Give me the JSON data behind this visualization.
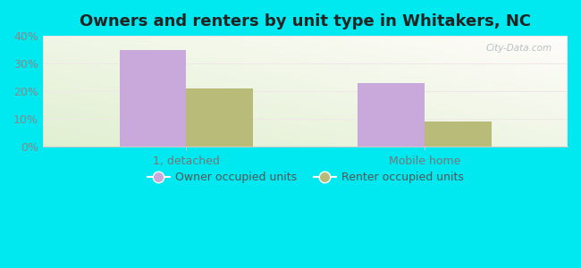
{
  "title": "Owners and renters by unit type in Whitakers, NC",
  "categories": [
    "1, detached",
    "Mobile home"
  ],
  "owner_values": [
    35,
    23
  ],
  "renter_values": [
    21,
    9
  ],
  "owner_color": "#c9a8dc",
  "renter_color": "#b8bc78",
  "ylim": [
    0,
    40
  ],
  "yticks": [
    0,
    10,
    20,
    30,
    40
  ],
  "ytick_labels": [
    "0%",
    "10%",
    "20%",
    "30%",
    "40%"
  ],
  "legend_owner": "Owner occupied units",
  "legend_renter": "Renter occupied units",
  "background_outer": "#00e8f0",
  "bar_width": 0.28,
  "title_fontsize": 13,
  "tick_fontsize": 9,
  "watermark": "City-Data.com"
}
